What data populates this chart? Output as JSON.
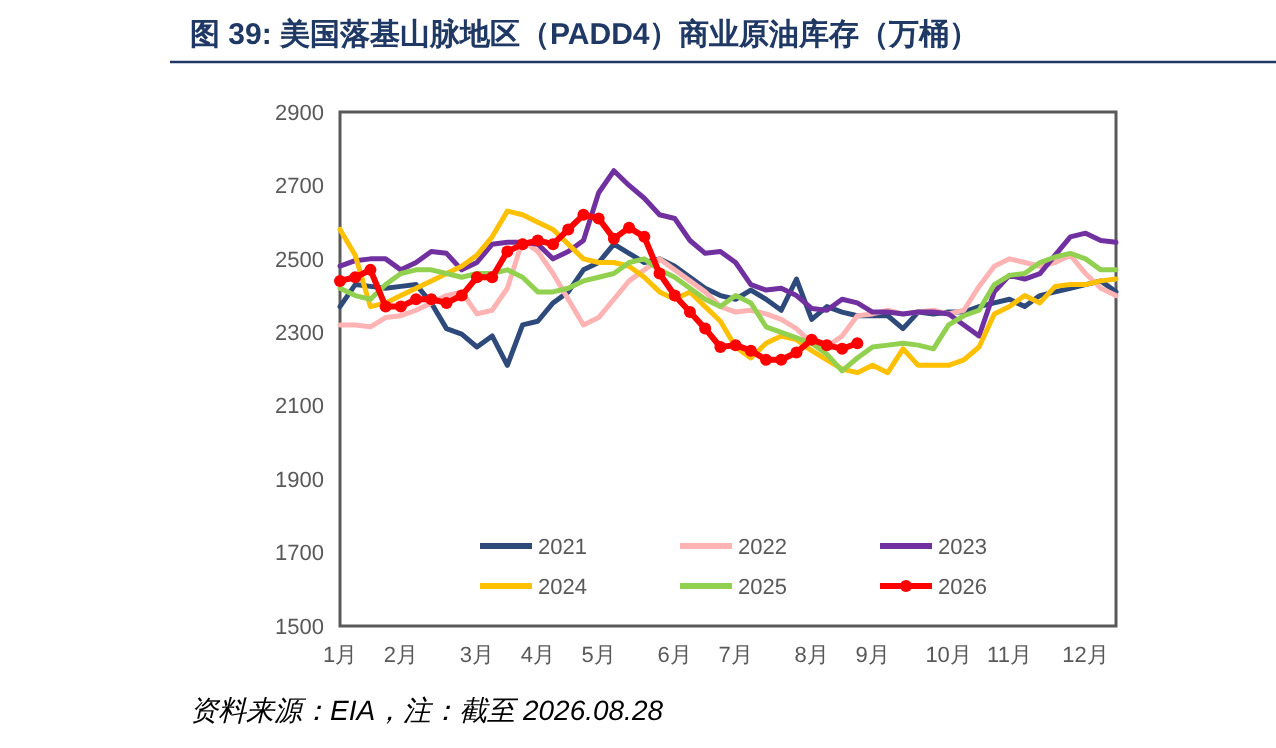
{
  "chart_data": {
    "type": "line",
    "title": "图 39: 美国落基山脉地区（PADD4）商业原油库存（万桶）",
    "annotations": [
      "资料来源：EIA，注：截至 2026.08.28"
    ],
    "categories": [
      "1月",
      null,
      null,
      null,
      "2月",
      null,
      null,
      null,
      null,
      "3月",
      null,
      null,
      null,
      "4月",
      null,
      null,
      null,
      "5月",
      null,
      null,
      null,
      null,
      "6月",
      null,
      null,
      null,
      "7月",
      null,
      null,
      null,
      null,
      "8月",
      null,
      null,
      null,
      "9月",
      null,
      null,
      null,
      null,
      "10月",
      null,
      null,
      null,
      "11月",
      null,
      null,
      null,
      null,
      "12月",
      null,
      null
    ],
    "ylim": [
      1500,
      2900
    ],
    "yticks": [
      1500,
      1700,
      1900,
      2100,
      2300,
      2500,
      2700,
      2900
    ],
    "legend": "bottom",
    "series": [
      {
        "name": "2021",
        "color": "#2e4a7a",
        "values": [
          2370,
          2430,
          2425,
          2420,
          2425,
          2430,
          2380,
          2310,
          2295,
          2260,
          2290,
          2210,
          2320,
          2330,
          2380,
          2410,
          2470,
          2490,
          2540,
          2515,
          2490,
          2500,
          2480,
          2450,
          2420,
          2400,
          2390,
          2415,
          2390,
          2360,
          2445,
          2335,
          2370,
          2355,
          2345,
          2345,
          2345,
          2310,
          2355,
          2350,
          2355,
          2355,
          2370,
          2380,
          2390,
          2370,
          2400,
          2410,
          2420,
          2430,
          2440,
          2410
        ]
      },
      {
        "name": "2022",
        "color": "#ffb3b3",
        "values": [
          2320,
          2320,
          2315,
          2340,
          2345,
          2360,
          2380,
          2400,
          2410,
          2350,
          2360,
          2420,
          2550,
          2520,
          2460,
          2390,
          2320,
          2340,
          2390,
          2440,
          2470,
          2500,
          2470,
          2440,
          2410,
          2370,
          2355,
          2360,
          2350,
          2335,
          2310,
          2270,
          2260,
          2290,
          2345,
          2350,
          2360,
          2350,
          2355,
          2360,
          2350,
          2360,
          2425,
          2480,
          2500,
          2490,
          2480,
          2490,
          2510,
          2460,
          2420,
          2400
        ]
      },
      {
        "name": "2023",
        "color": "#7030a0",
        "values": [
          2480,
          2495,
          2500,
          2500,
          2470,
          2490,
          2520,
          2515,
          2470,
          2490,
          2540,
          2545,
          2545,
          2540,
          2500,
          2520,
          2550,
          2680,
          2740,
          2700,
          2665,
          2620,
          2610,
          2550,
          2515,
          2520,
          2490,
          2430,
          2415,
          2420,
          2400,
          2365,
          2360,
          2390,
          2380,
          2355,
          2355,
          2350,
          2355,
          2355,
          2350,
          2320,
          2290,
          2410,
          2455,
          2445,
          2460,
          2510,
          2560,
          2570,
          2550,
          2545
        ]
      },
      {
        "name": "2024",
        "color": "#ffc000",
        "values": [
          2580,
          2510,
          2370,
          2380,
          2400,
          2420,
          2440,
          2460,
          2480,
          2510,
          2560,
          2630,
          2620,
          2600,
          2580,
          2540,
          2500,
          2490,
          2490,
          2480,
          2450,
          2410,
          2390,
          2410,
          2370,
          2330,
          2260,
          2230,
          2270,
          2290,
          2280,
          2250,
          2225,
          2200,
          2190,
          2210,
          2190,
          2255,
          2210,
          2210,
          2210,
          2225,
          2260,
          2350,
          2370,
          2400,
          2380,
          2425,
          2430,
          2430,
          2440,
          2445
        ]
      },
      {
        "name": "2025",
        "color": "#92d050",
        "values": [
          2420,
          2400,
          2390,
          2430,
          2460,
          2470,
          2470,
          2460,
          2450,
          2460,
          2460,
          2470,
          2450,
          2410,
          2410,
          2420,
          2440,
          2450,
          2460,
          2490,
          2500,
          2470,
          2450,
          2420,
          2390,
          2370,
          2400,
          2380,
          2315,
          2300,
          2285,
          2270,
          2240,
          2195,
          2230,
          2260,
          2265,
          2270,
          2265,
          2255,
          2320,
          2345,
          2360,
          2430,
          2455,
          2460,
          2490,
          2505,
          2515,
          2500,
          2470,
          2470
        ]
      },
      {
        "name": "2026",
        "color": "#ff0000",
        "marker": "circle",
        "values": [
          2440,
          2450,
          2470,
          2370,
          2370,
          2390,
          2390,
          2380,
          2400,
          2450,
          2450,
          2520,
          2540,
          2550,
          2540,
          2580,
          2620,
          2610,
          2555,
          2585,
          2560,
          2460,
          2400,
          2355,
          2310,
          2260,
          2265,
          2250,
          2225,
          2225,
          2245,
          2280,
          2265,
          2255,
          2270,
          null,
          null,
          null,
          null,
          null,
          null,
          null,
          null,
          null,
          null,
          null,
          null,
          null,
          null,
          null,
          null,
          null
        ]
      }
    ]
  }
}
